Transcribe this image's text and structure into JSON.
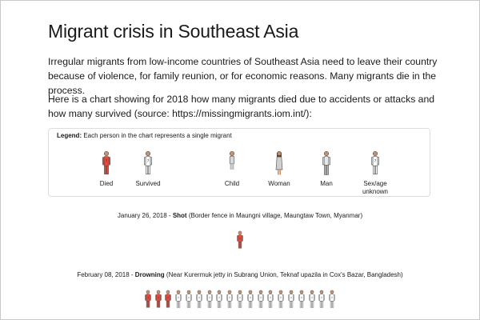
{
  "page": {
    "title": "Migrant crisis in Southeast Asia",
    "intro": "Irregular migrants from low-income countries of Southeast Asia need to leave their country because of violence, for family reunion, or for economic reasons. Many migrants die in the process.",
    "chart_intro": "Here is a chart showing for 2018 how many migrants died due to accidents or attacks and how many survived (source: https://missingmigrants.iom.int/):"
  },
  "legend": {
    "label": "Legend:",
    "caption": "Each person in the chart represents a single migrant",
    "items": [
      {
        "name": "died",
        "label": "Died",
        "icon": "person-died-icon"
      },
      {
        "name": "survived",
        "label": "Survived",
        "icon": "person-survived-icon"
      },
      {
        "name": "child",
        "label": "Child",
        "icon": "person-child-icon"
      },
      {
        "name": "woman",
        "label": "Woman",
        "icon": "person-woman-icon"
      },
      {
        "name": "man",
        "label": "Man",
        "icon": "person-man-icon"
      },
      {
        "name": "unknown",
        "label": "Sex/age unknown",
        "icon": "person-unknown-icon"
      }
    ]
  },
  "colors": {
    "died": "#e34a3c",
    "survived": "#ffffff",
    "skin": "#c8916a",
    "outline": "#555555",
    "text": "#1a1a1a"
  },
  "events": [
    {
      "date": "January 26, 2018",
      "separator": " - ",
      "cause": "Shot",
      "location": "(Border fence in Maungni village, Maungtaw Town, Myanmar)",
      "died": 1,
      "survived": 0
    },
    {
      "date": "February 08, 2018",
      "separator": " - ",
      "cause": "Drowning",
      "location": "(Near Kurermuk jetty in Subrang Union, Teknaf upazila in Cox's Bazar, Bangladesh)",
      "died": 3,
      "survived": 16
    }
  ]
}
